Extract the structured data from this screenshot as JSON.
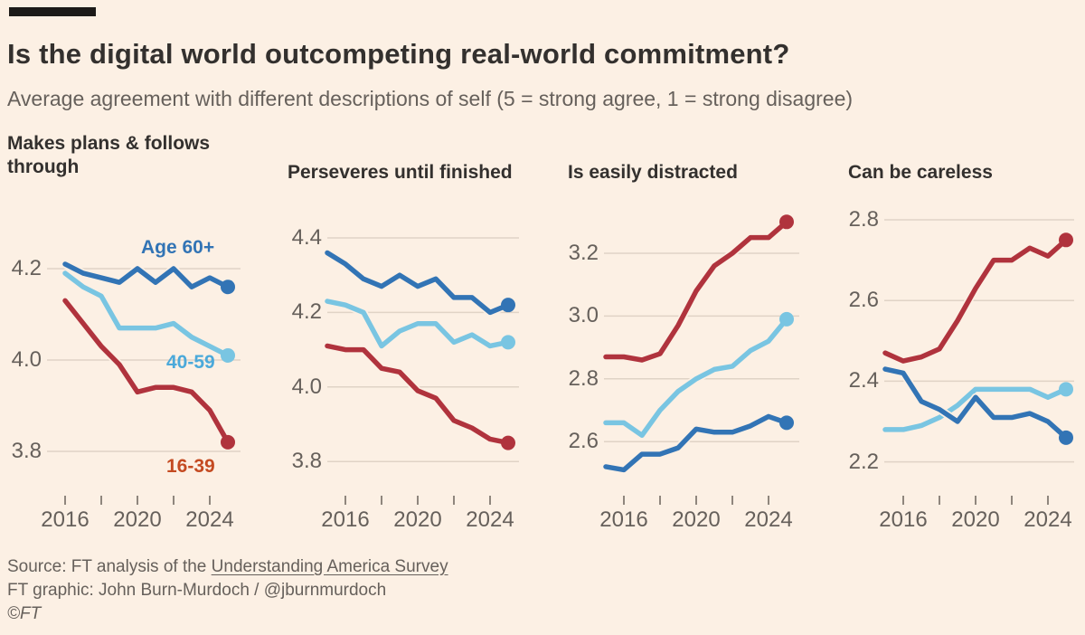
{
  "header": {
    "title": "Is the digital world outcompeting real-world commitment?",
    "subtitle": "Average agreement with different descriptions of self (5 = strong agree, 1 = strong disagree)"
  },
  "footer": {
    "source_prefix": "Source: FT analysis of the ",
    "source_link": "Understanding America Survey",
    "credit": "FT graphic: John Burn-Murdoch / @jburnmurdoch",
    "copyright": "©FT"
  },
  "colors": {
    "background": "#FCF0E4",
    "title_text": "#33302E",
    "muted_text": "#66605B",
    "gridline": "#E0D3C6",
    "tick": "#8F867D",
    "top_bar": "#1C1A18",
    "age_60_plus": "#3274B5",
    "age_40_59": "#79C5E2",
    "age_16_39": "#B0333D",
    "label_age_60_plus": "#3274B5",
    "label_age_40_59": "#4BA9DA",
    "label_age_16_39": "#C44A21"
  },
  "chart_data": [
    {
      "type": "line",
      "title": "Makes plans & follows through",
      "x": [
        2016,
        2017,
        2018,
        2019,
        2020,
        2021,
        2022,
        2023,
        2024,
        2025
      ],
      "series": [
        {
          "name": "Age 60+",
          "values": [
            4.21,
            4.19,
            4.18,
            4.17,
            4.2,
            4.17,
            4.2,
            4.16,
            4.18,
            4.16
          ]
        },
        {
          "name": "40-59",
          "values": [
            4.19,
            4.16,
            4.14,
            4.07,
            4.07,
            4.07,
            4.08,
            4.05,
            4.03,
            4.01
          ]
        },
        {
          "name": "16-39",
          "values": [
            4.13,
            4.08,
            4.03,
            3.99,
            3.93,
            3.94,
            3.94,
            3.93,
            3.89,
            3.82
          ]
        }
      ],
      "yticks": [
        "4.2",
        "4.0",
        "3.8"
      ],
      "xticks": [
        2016,
        2018,
        2020,
        2022,
        2024
      ],
      "xtick_labels": [
        "2016",
        "2020",
        "2024"
      ],
      "ylim": [
        3.76,
        4.29
      ],
      "grid": true,
      "legend": "inline-labels"
    },
    {
      "type": "line",
      "title": "Perseveres until finished",
      "x": [
        2015,
        2016,
        2017,
        2018,
        2019,
        2020,
        2021,
        2022,
        2023,
        2024,
        2025
      ],
      "series": [
        {
          "name": "Age 60+",
          "values": [
            4.36,
            4.33,
            4.29,
            4.27,
            4.3,
            4.27,
            4.29,
            4.24,
            4.24,
            4.2,
            4.22
          ]
        },
        {
          "name": "40-59",
          "values": [
            4.23,
            4.22,
            4.2,
            4.11,
            4.15,
            4.17,
            4.17,
            4.12,
            4.14,
            4.11,
            4.12
          ]
        },
        {
          "name": "16-39",
          "values": [
            4.11,
            4.1,
            4.1,
            4.05,
            4.04,
            3.99,
            3.97,
            3.91,
            3.89,
            3.86,
            3.85
          ]
        }
      ],
      "yticks": [
        "4.4",
        "4.2",
        "4.0",
        "3.8"
      ],
      "xticks": [
        2016,
        2018,
        2020,
        2022,
        2024
      ],
      "xtick_labels": [
        "2016",
        "2020",
        "2024"
      ],
      "ylim": [
        3.78,
        4.42
      ],
      "grid": true,
      "legend": "none"
    },
    {
      "type": "line",
      "title": "Is easily distracted",
      "x": [
        2015,
        2016,
        2017,
        2018,
        2019,
        2020,
        2021,
        2022,
        2023,
        2024,
        2025
      ],
      "series": [
        {
          "name": "Age 60+",
          "values": [
            2.52,
            2.51,
            2.56,
            2.56,
            2.58,
            2.64,
            2.63,
            2.63,
            2.65,
            2.68,
            2.66
          ]
        },
        {
          "name": "40-59",
          "values": [
            2.66,
            2.66,
            2.62,
            2.7,
            2.76,
            2.8,
            2.83,
            2.84,
            2.89,
            2.92,
            2.99
          ]
        },
        {
          "name": "16-39",
          "values": [
            2.87,
            2.87,
            2.86,
            2.88,
            2.97,
            3.08,
            3.16,
            3.2,
            3.25,
            3.25,
            3.3
          ]
        }
      ],
      "yticks": [
        "3.2",
        "3.0",
        "2.8",
        "2.6"
      ],
      "xticks": [
        2016,
        2018,
        2020,
        2022,
        2024
      ],
      "xtick_labels": [
        "2016",
        "2020",
        "2024"
      ],
      "ylim": [
        2.48,
        3.33
      ],
      "grid": true,
      "legend": "none"
    },
    {
      "type": "line",
      "title": "Can be careless",
      "x": [
        2015,
        2016,
        2017,
        2018,
        2019,
        2020,
        2021,
        2022,
        2023,
        2024,
        2025
      ],
      "series": [
        {
          "name": "Age 60+",
          "values": [
            2.43,
            2.42,
            2.35,
            2.33,
            2.3,
            2.36,
            2.31,
            2.31,
            2.32,
            2.3,
            2.26
          ]
        },
        {
          "name": "40-59",
          "values": [
            2.28,
            2.28,
            2.29,
            2.31,
            2.34,
            2.38,
            2.38,
            2.38,
            2.38,
            2.36,
            2.38
          ]
        },
        {
          "name": "16-39",
          "values": [
            2.47,
            2.45,
            2.46,
            2.48,
            2.55,
            2.63,
            2.7,
            2.7,
            2.73,
            2.71,
            2.75
          ]
        }
      ],
      "yticks": [
        "2.8",
        "2.6",
        "2.4",
        "2.2"
      ],
      "xticks": [
        2016,
        2018,
        2020,
        2022,
        2024
      ],
      "xtick_labels": [
        "2016",
        "2020",
        "2024"
      ],
      "ylim": [
        2.18,
        2.82
      ],
      "grid": true,
      "legend": "none"
    }
  ]
}
